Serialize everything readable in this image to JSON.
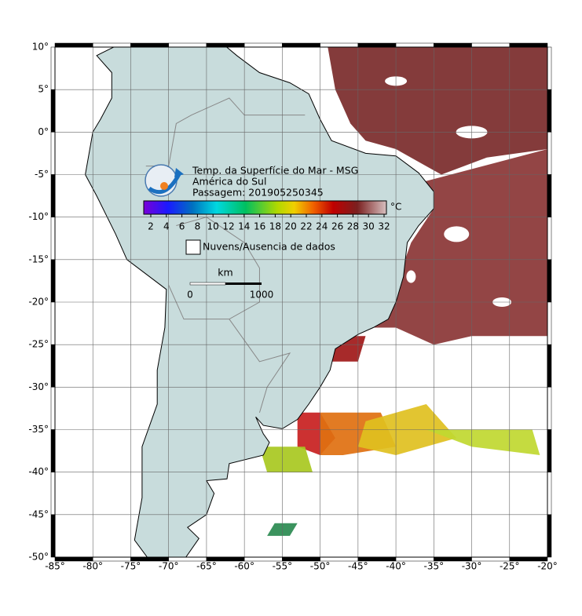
{
  "map": {
    "title": "Temp. da Superfície do Mar - MSG",
    "region": "América do Sul",
    "pass": "Passagem: 201905250345",
    "colorbar": {
      "ticks": [
        2,
        4,
        6,
        8,
        10,
        12,
        14,
        16,
        18,
        20,
        22,
        24,
        26,
        28,
        30,
        32
      ],
      "unit": "°C"
    },
    "legend": "Nuvens/Ausencia de dados",
    "scale": {
      "unit": "km",
      "start": 0,
      "end": 1000
    },
    "lon_ticks": [
      {
        "value": -85,
        "label": "-85°"
      },
      {
        "value": -80,
        "label": "-80°"
      },
      {
        "value": -75,
        "label": "-75°"
      },
      {
        "value": -70,
        "label": "-70°"
      },
      {
        "value": -65,
        "label": "-65°"
      },
      {
        "value": -60,
        "label": "-60°"
      },
      {
        "value": -55,
        "label": "-55°"
      },
      {
        "value": -50,
        "label": "-50°"
      },
      {
        "value": -45,
        "label": "-45°"
      },
      {
        "value": -40,
        "label": "-40°"
      },
      {
        "value": -35,
        "label": "-35°"
      },
      {
        "value": -30,
        "label": "-30°"
      },
      {
        "value": -25,
        "label": "-25°"
      },
      {
        "value": -20,
        "label": "-20°"
      }
    ],
    "lat_ticks": [
      {
        "value": 10,
        "label": "10°"
      },
      {
        "value": 5,
        "label": "5°"
      },
      {
        "value": 0,
        "label": "0°"
      },
      {
        "value": -5,
        "label": "-5°"
      },
      {
        "value": -10,
        "label": "-10°"
      },
      {
        "value": -15,
        "label": "-15°"
      },
      {
        "value": -20,
        "label": "-20°"
      },
      {
        "value": -25,
        "label": "-25°"
      },
      {
        "value": -30,
        "label": "-30°"
      },
      {
        "value": -35,
        "label": "-35°"
      },
      {
        "value": -40,
        "label": "-40°"
      },
      {
        "value": -45,
        "label": "-45°"
      },
      {
        "value": -50,
        "label": "-50°"
      }
    ]
  }
}
